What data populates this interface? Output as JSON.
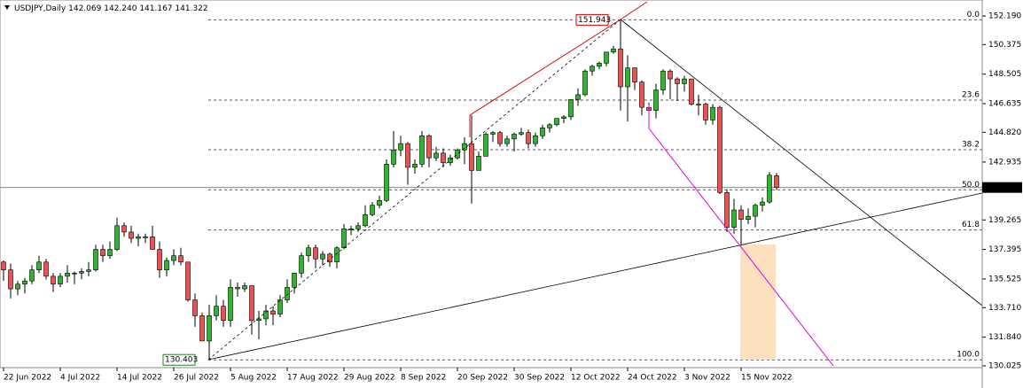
{
  "chart_data": {
    "type": "candlestick",
    "symbol": "USDJPY,Daily",
    "ohlc_labels": [
      "142.069",
      "142.240",
      "141.167",
      "141.322"
    ],
    "up_color": "#2db52d",
    "down_color": "#f05050",
    "categories": [
      "22 Jun 2022",
      null,
      null,
      null,
      null,
      null,
      null,
      null,
      "4 Jul 2022",
      null,
      null,
      null,
      null,
      null,
      null,
      null,
      "14 Jul 2022",
      null,
      null,
      null,
      null,
      null,
      null,
      null,
      "26 Jul 2022",
      null,
      null,
      null,
      null,
      null,
      null,
      null,
      "5 Aug 2022",
      null,
      null,
      null,
      null,
      null,
      null,
      null,
      "17 Aug 2022",
      null,
      null,
      null,
      null,
      null,
      null,
      null,
      "29 Aug 2022",
      null,
      null,
      null,
      null,
      null,
      null,
      null,
      "8 Sep 2022",
      null,
      null,
      null,
      null,
      null,
      null,
      null,
      "20 Sep 2022",
      null,
      null,
      null,
      null,
      null,
      null,
      null,
      "30 Sep 2022",
      null,
      null,
      null,
      null,
      null,
      null,
      null,
      "12 Oct 2022",
      null,
      null,
      null,
      null,
      null,
      null,
      null,
      "24 Oct 2022",
      null,
      null,
      null,
      null,
      null,
      null,
      null,
      "3 Nov 2022",
      null,
      null,
      null,
      null,
      null,
      null,
      null,
      "15 Nov 2022",
      null,
      null,
      null,
      null,
      null
    ],
    "open": [
      136.6,
      136.1,
      134.9,
      135.2,
      135.4,
      136.1,
      136.6,
      135.7,
      135.2,
      135.7,
      135.9,
      135.9,
      136.0,
      136.1,
      137.4,
      137.0,
      137.4,
      138.9,
      138.5,
      138.1,
      138.2,
      138.2,
      137.4,
      136.1,
      136.7,
      137.0,
      136.6,
      134.2,
      133.2,
      131.6,
      133.2,
      133.8,
      132.9,
      135.0,
      134.9,
      135.1,
      132.9,
      133.0,
      133.5,
      133.3,
      134.2,
      135.0,
      135.9,
      137.0,
      137.5,
      136.8,
      137.1,
      136.6,
      137.5,
      138.7,
      138.7,
      138.9,
      139.6,
      140.2,
      140.5,
      142.8,
      143.7,
      144.1,
      142.6,
      142.8,
      144.6,
      143.2,
      143.5,
      142.9,
      143.2,
      143.7,
      144.1,
      142.4,
      143.3,
      144.7,
      144.8,
      144.1,
      144.4,
      144.7,
      144.8,
      144.1,
      144.6,
      145.1,
      145.3,
      145.7,
      145.8,
      146.9,
      147.2,
      148.7,
      149.0,
      149.2,
      149.9,
      150.1,
      147.7,
      148.9,
      148.0,
      146.4,
      146.2,
      147.5,
      148.7,
      148.2,
      147.9,
      148.2,
      146.6,
      146.6,
      145.6,
      146.4,
      141.0,
      138.8,
      139.9,
      139.3,
      139.5,
      140.2,
      140.4,
      142.069
    ],
    "high": [
      136.7,
      136.5,
      135.4,
      135.6,
      136.4,
      137.0,
      136.8,
      135.9,
      135.9,
      136.4,
      136.0,
      136.2,
      136.6,
      137.7,
      137.7,
      137.9,
      139.4,
      139.1,
      138.9,
      138.4,
      138.4,
      138.9,
      137.9,
      136.9,
      137.4,
      137.5,
      136.6,
      134.6,
      133.4,
      133.9,
      134.5,
      134.2,
      135.5,
      135.3,
      135.3,
      135.1,
      133.5,
      133.9,
      133.8,
      134.5,
      135.5,
      135.9,
      137.2,
      137.7,
      137.7,
      137.3,
      137.2,
      137.6,
      139.0,
      138.9,
      139.1,
      140.2,
      140.4,
      140.8,
      143.1,
      144.9,
      144.6,
      144.2,
      143.1,
      144.9,
      144.7,
      143.9,
      143.8,
      143.4,
      143.8,
      144.5,
      145.9,
      143.6,
      144.8,
      144.9,
      144.9,
      144.6,
      144.8,
      145.1,
      145.0,
      144.8,
      145.3,
      145.4,
      145.7,
      145.9,
      146.9,
      147.6,
      148.8,
      149.1,
      149.3,
      149.9,
      150.3,
      151.943,
      149.7,
      148.9,
      148.1,
      146.7,
      147.9,
      148.8,
      148.8,
      148.3,
      148.4,
      148.2,
      147.2,
      146.7,
      146.6,
      146.5,
      141.2,
      140.6,
      140.2,
      140.0,
      140.3,
      140.7,
      142.3,
      142.24
    ],
    "low": [
      135.4,
      134.3,
      134.5,
      134.6,
      135.2,
      135.9,
      135.5,
      134.7,
      135.0,
      135.3,
      135.2,
      135.5,
      135.7,
      136.0,
      136.6,
      136.8,
      137.3,
      138.2,
      137.8,
      137.6,
      137.8,
      137.4,
      135.6,
      135.7,
      136.4,
      136.4,
      134.1,
      132.5,
      131.6,
      130.403,
      132.9,
      132.5,
      132.5,
      134.4,
      134.7,
      132.0,
      131.7,
      132.6,
      132.6,
      133.1,
      134.0,
      134.6,
      135.6,
      136.6,
      136.2,
      136.4,
      136.3,
      136.2,
      137.4,
      138.3,
      138.5,
      138.8,
      139.5,
      140.0,
      140.4,
      142.6,
      143.3,
      141.5,
      142.2,
      142.6,
      142.6,
      143.0,
      142.6,
      142.7,
      143.1,
      142.8,
      140.3,
      142.4,
      143.3,
      144.2,
      143.9,
      143.9,
      143.6,
      144.6,
      143.8,
      143.9,
      144.4,
      144.8,
      145.2,
      145.4,
      145.6,
      146.5,
      147.1,
      148.4,
      148.8,
      149.0,
      149.8,
      146.2,
      145.5,
      147.5,
      145.9,
      145.2,
      145.7,
      147.2,
      146.9,
      146.8,
      147.4,
      146.5,
      145.9,
      145.3,
      145.3,
      140.9,
      138.5,
      138.4,
      137.7,
      139.0,
      138.8,
      139.8,
      140.3,
      141.167
    ],
    "close": [
      136.1,
      134.9,
      135.2,
      135.4,
      136.1,
      136.6,
      135.7,
      135.2,
      135.7,
      135.9,
      135.9,
      136.0,
      136.1,
      137.4,
      137.0,
      137.4,
      138.9,
      138.5,
      138.1,
      138.2,
      138.2,
      137.4,
      136.1,
      136.7,
      137.0,
      136.6,
      134.2,
      133.2,
      131.6,
      133.2,
      133.8,
      132.9,
      135.0,
      134.9,
      135.1,
      132.9,
      133.0,
      133.5,
      133.3,
      134.2,
      135.0,
      135.9,
      137.0,
      137.5,
      136.8,
      137.1,
      136.6,
      137.5,
      138.7,
      138.7,
      138.9,
      139.6,
      140.2,
      140.5,
      142.8,
      143.7,
      144.1,
      142.6,
      142.8,
      144.6,
      143.2,
      143.5,
      142.9,
      143.2,
      143.7,
      144.1,
      142.4,
      143.3,
      144.7,
      144.8,
      144.1,
      144.4,
      144.7,
      144.8,
      144.1,
      144.6,
      145.1,
      145.3,
      145.7,
      145.8,
      146.9,
      147.2,
      148.7,
      149.0,
      149.2,
      149.9,
      150.1,
      147.7,
      148.9,
      148.0,
      146.4,
      146.2,
      147.5,
      148.7,
      148.2,
      147.9,
      148.2,
      146.6,
      146.6,
      145.6,
      146.4,
      141.0,
      138.8,
      139.9,
      139.3,
      139.5,
      140.2,
      140.4,
      142.1,
      141.322
    ],
    "ylim": [
      129.91,
      153.2
    ],
    "yticks": [
      {
        "value": 152.19,
        "label": "152.190"
      },
      {
        "value": 150.375,
        "label": "150.375"
      },
      {
        "value": 148.505,
        "label": "148.505"
      },
      {
        "value": 146.635,
        "label": "146.635"
      },
      {
        "value": 144.82,
        "label": "144.820"
      },
      {
        "value": 142.935,
        "label": "142.935"
      },
      {
        "value": 139.265,
        "label": "139.265"
      },
      {
        "value": 137.395,
        "label": "137.395"
      },
      {
        "value": 135.525,
        "label": "135.525"
      },
      {
        "value": 133.71,
        "label": "133.710"
      },
      {
        "value": 131.84,
        "label": "131.840"
      },
      {
        "value": 130.025,
        "label": "130.025"
      }
    ],
    "fibo": {
      "levels": [
        {
          "value": 0,
          "label": "0.0"
        },
        23.6,
        38.2,
        {
          "value": 50,
          "label": "50.0"
        },
        61.8,
        {
          "value": 100,
          "label": "100.0"
        }
      ],
      "prices": [
        151.943,
        146.86,
        143.715,
        141.173,
        138.63,
        130.403
      ]
    }
  }
}
